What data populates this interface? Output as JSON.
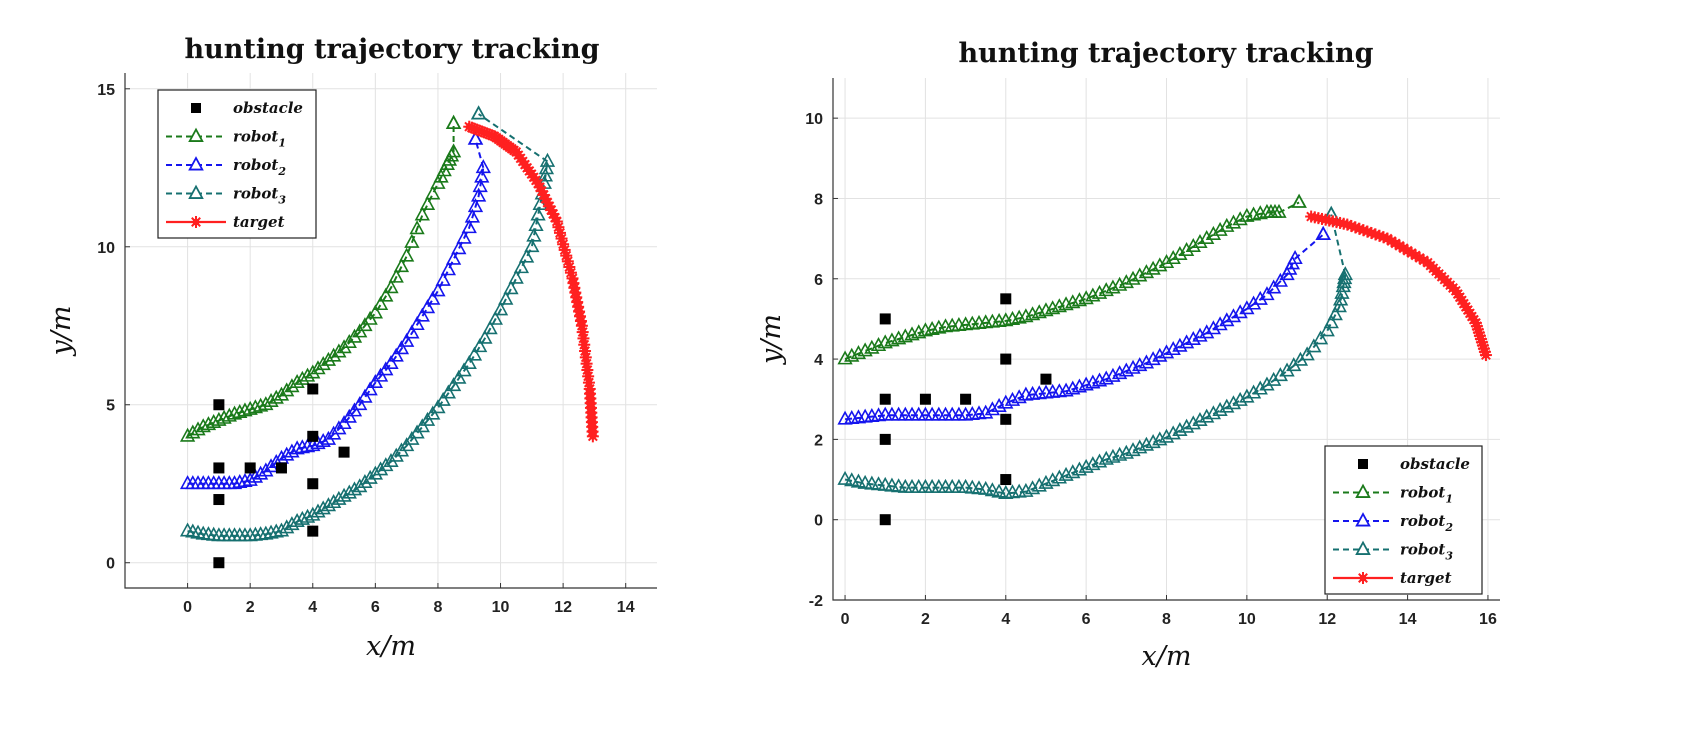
{
  "chart_data": [
    {
      "type": "line",
      "title": "hunting trajectory tracking",
      "xlabel": "x/m",
      "ylabel": "y/m",
      "xlim": [
        -2,
        15
      ],
      "ylim": [
        -0.8,
        15.5
      ],
      "xticks": [
        0,
        2,
        4,
        6,
        8,
        10,
        12,
        14
      ],
      "yticks": [
        0,
        5,
        10,
        15
      ],
      "grid": true,
      "legend": {
        "position": "top-left",
        "entries": [
          {
            "label": "obstacle",
            "sub": ""
          },
          {
            "label": "robot",
            "sub": "1"
          },
          {
            "label": "robot",
            "sub": "2"
          },
          {
            "label": "robot",
            "sub": "3"
          },
          {
            "label": "target",
            "sub": ""
          }
        ]
      },
      "obstacles": [
        [
          1,
          5
        ],
        [
          1,
          3
        ],
        [
          1,
          2
        ],
        [
          1,
          0
        ],
        [
          2,
          3
        ],
        [
          3,
          3
        ],
        [
          4,
          5.5
        ],
        [
          4,
          4
        ],
        [
          4,
          2.5
        ],
        [
          4,
          1
        ],
        [
          5,
          3.5
        ]
      ],
      "series": [
        {
          "name": "robot1",
          "color": "#1a7a1a",
          "marker": "triangle",
          "line": "dashed",
          "points": [
            [
              0,
              4
            ],
            [
              0.5,
              4.3
            ],
            [
              1,
              4.5
            ],
            [
              1.5,
              4.7
            ],
            [
              2,
              4.85
            ],
            [
              2.5,
              5.0
            ],
            [
              3,
              5.3
            ],
            [
              3.5,
              5.7
            ],
            [
              4,
              6.0
            ],
            [
              4.5,
              6.4
            ],
            [
              5,
              6.8
            ],
            [
              5.5,
              7.3
            ],
            [
              6,
              7.9
            ],
            [
              6.5,
              8.7
            ],
            [
              7,
              9.7
            ],
            [
              7.5,
              11.0
            ],
            [
              8,
              12.0
            ],
            [
              8.3,
              12.6
            ],
            [
              8.5,
              13.0
            ]
          ],
          "end": [
            8.5,
            13.9
          ]
        },
        {
          "name": "robot2",
          "color": "#1515ee",
          "marker": "triangle",
          "line": "dashed",
          "points": [
            [
              0,
              2.5
            ],
            [
              0.5,
              2.5
            ],
            [
              1,
              2.5
            ],
            [
              1.5,
              2.5
            ],
            [
              2,
              2.6
            ],
            [
              2.5,
              2.9
            ],
            [
              3,
              3.3
            ],
            [
              3.5,
              3.6
            ],
            [
              4,
              3.7
            ],
            [
              4.5,
              3.9
            ],
            [
              5,
              4.4
            ],
            [
              5.5,
              5.0
            ],
            [
              6,
              5.7
            ],
            [
              6.5,
              6.3
            ],
            [
              7,
              7.0
            ],
            [
              7.5,
              7.8
            ],
            [
              8,
              8.6
            ],
            [
              8.5,
              9.6
            ],
            [
              9,
              10.6
            ],
            [
              9.3,
              11.6
            ],
            [
              9.45,
              12.5
            ]
          ],
          "end": [
            9.2,
            13.4
          ]
        },
        {
          "name": "robot3",
          "color": "#167070",
          "marker": "triangle",
          "line": "dashed",
          "points": [
            [
              0,
              1
            ],
            [
              0.5,
              0.9
            ],
            [
              1,
              0.85
            ],
            [
              1.5,
              0.85
            ],
            [
              2,
              0.85
            ],
            [
              2.5,
              0.9
            ],
            [
              3,
              1.0
            ],
            [
              3.5,
              1.3
            ],
            [
              4,
              1.5
            ],
            [
              4.5,
              1.8
            ],
            [
              5,
              2.1
            ],
            [
              5.5,
              2.4
            ],
            [
              6,
              2.8
            ],
            [
              6.5,
              3.2
            ],
            [
              7,
              3.7
            ],
            [
              7.5,
              4.3
            ],
            [
              8,
              4.9
            ],
            [
              8.5,
              5.6
            ],
            [
              9,
              6.3
            ],
            [
              9.5,
              7.1
            ],
            [
              10,
              8.0
            ],
            [
              10.5,
              9.0
            ],
            [
              11,
              10.0
            ],
            [
              11.2,
              11.0
            ],
            [
              11.4,
              12.0
            ],
            [
              11.5,
              12.7
            ]
          ],
          "end": [
            9.3,
            14.2
          ]
        },
        {
          "name": "target",
          "color": "#ff2020",
          "marker": "star",
          "line": "solid",
          "points": [
            [
              9.0,
              13.8
            ],
            [
              9.8,
              13.5
            ],
            [
              10.5,
              13.0
            ],
            [
              11.2,
              12.0
            ],
            [
              11.8,
              10.8
            ],
            [
              12.3,
              9.0
            ],
            [
              12.6,
              7.5
            ],
            [
              12.85,
              5.5
            ],
            [
              12.95,
              4.0
            ]
          ]
        }
      ]
    },
    {
      "type": "line",
      "title": "hunting trajectory tracking",
      "xlabel": "x/m",
      "ylabel": "y/m",
      "xlim": [
        -0.3,
        16.3
      ],
      "ylim": [
        -2,
        11
      ],
      "xticks": [
        0,
        2,
        4,
        6,
        8,
        10,
        12,
        14,
        16
      ],
      "yticks": [
        -2,
        0,
        2,
        4,
        6,
        8,
        10
      ],
      "grid": true,
      "legend": {
        "position": "bottom-right",
        "entries": [
          {
            "label": "obstacle",
            "sub": ""
          },
          {
            "label": "robot",
            "sub": "1"
          },
          {
            "label": "robot",
            "sub": "2"
          },
          {
            "label": "robot",
            "sub": "3"
          },
          {
            "label": "target",
            "sub": ""
          }
        ]
      },
      "obstacles": [
        [
          1,
          5
        ],
        [
          1,
          3
        ],
        [
          1,
          2
        ],
        [
          1,
          0
        ],
        [
          2,
          3
        ],
        [
          3,
          3
        ],
        [
          4,
          5.5
        ],
        [
          4,
          4
        ],
        [
          4,
          2.5
        ],
        [
          4,
          1
        ],
        [
          5,
          3.5
        ]
      ],
      "series": [
        {
          "name": "robot1",
          "color": "#1a7a1a",
          "marker": "triangle",
          "line": "dashed",
          "points": [
            [
              0,
              4.0
            ],
            [
              0.5,
              4.2
            ],
            [
              1,
              4.4
            ],
            [
              1.5,
              4.55
            ],
            [
              2,
              4.7
            ],
            [
              2.5,
              4.8
            ],
            [
              3,
              4.85
            ],
            [
              3.5,
              4.9
            ],
            [
              4,
              4.95
            ],
            [
              4.5,
              5.05
            ],
            [
              5,
              5.2
            ],
            [
              5.5,
              5.35
            ],
            [
              6,
              5.5
            ],
            [
              6.5,
              5.7
            ],
            [
              7,
              5.9
            ],
            [
              7.5,
              6.15
            ],
            [
              8,
              6.4
            ],
            [
              8.5,
              6.7
            ],
            [
              9,
              7.0
            ],
            [
              9.5,
              7.3
            ],
            [
              10,
              7.55
            ],
            [
              10.5,
              7.65
            ],
            [
              10.8,
              7.65
            ]
          ],
          "end": [
            11.3,
            7.9
          ]
        },
        {
          "name": "robot2",
          "color": "#1515ee",
          "marker": "triangle",
          "line": "dashed",
          "points": [
            [
              0,
              2.5
            ],
            [
              0.5,
              2.55
            ],
            [
              1,
              2.6
            ],
            [
              1.5,
              2.6
            ],
            [
              2,
              2.6
            ],
            [
              2.5,
              2.6
            ],
            [
              3,
              2.6
            ],
            [
              3.5,
              2.65
            ],
            [
              4,
              2.9
            ],
            [
              4.5,
              3.1
            ],
            [
              5,
              3.15
            ],
            [
              5.5,
              3.2
            ],
            [
              6,
              3.35
            ],
            [
              6.5,
              3.5
            ],
            [
              7,
              3.7
            ],
            [
              7.5,
              3.9
            ],
            [
              8,
              4.15
            ],
            [
              8.5,
              4.4
            ],
            [
              9,
              4.65
            ],
            [
              9.5,
              4.95
            ],
            [
              10,
              5.25
            ],
            [
              10.5,
              5.6
            ],
            [
              11,
              6.1
            ],
            [
              11.2,
              6.5
            ]
          ],
          "end": [
            11.9,
            7.1
          ]
        },
        {
          "name": "robot3",
          "color": "#167070",
          "marker": "triangle",
          "line": "dashed",
          "points": [
            [
              0,
              1.0
            ],
            [
              0.5,
              0.9
            ],
            [
              1,
              0.85
            ],
            [
              1.5,
              0.8
            ],
            [
              2,
              0.8
            ],
            [
              2.5,
              0.8
            ],
            [
              3,
              0.8
            ],
            [
              3.5,
              0.75
            ],
            [
              4,
              0.65
            ],
            [
              4.5,
              0.7
            ],
            [
              5,
              0.9
            ],
            [
              5.5,
              1.1
            ],
            [
              6,
              1.3
            ],
            [
              6.5,
              1.5
            ],
            [
              7,
              1.65
            ],
            [
              7.5,
              1.85
            ],
            [
              8,
              2.05
            ],
            [
              8.5,
              2.3
            ],
            [
              9,
              2.55
            ],
            [
              9.5,
              2.8
            ],
            [
              10,
              3.05
            ],
            [
              10.5,
              3.35
            ],
            [
              11,
              3.7
            ],
            [
              11.5,
              4.1
            ],
            [
              12,
              4.7
            ],
            [
              12.3,
              5.3
            ],
            [
              12.4,
              5.8
            ],
            [
              12.45,
              6.1
            ]
          ],
          "end": [
            12.1,
            7.6
          ]
        },
        {
          "name": "target",
          "color": "#ff2020",
          "marker": "star",
          "line": "solid",
          "points": [
            [
              11.6,
              7.55
            ],
            [
              12.5,
              7.35
            ],
            [
              13.5,
              7.0
            ],
            [
              14.5,
              6.4
            ],
            [
              15.2,
              5.7
            ],
            [
              15.7,
              4.9
            ],
            [
              15.95,
              4.1
            ]
          ]
        }
      ]
    }
  ]
}
